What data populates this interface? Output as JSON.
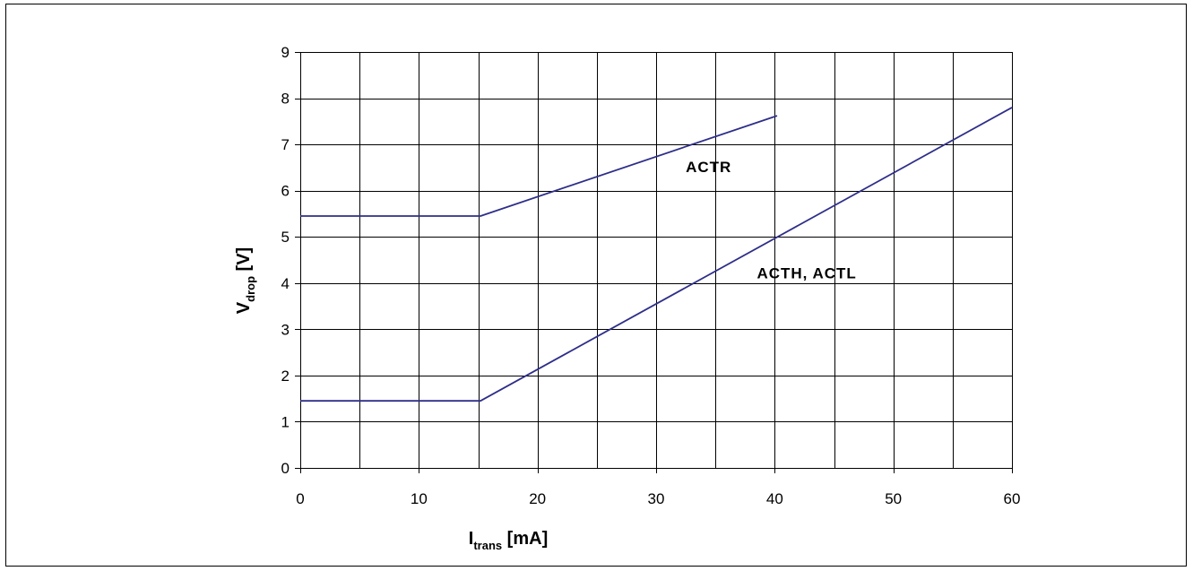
{
  "chart_data": {
    "type": "line",
    "xlabel": {
      "main": "I",
      "sub": "trans",
      "unit": " [mA]"
    },
    "ylabel": {
      "main": "V",
      "sub": "drop",
      "unit": " [V]"
    },
    "xlim": [
      0,
      60
    ],
    "ylim": [
      0,
      9
    ],
    "xticks": [
      0,
      10,
      20,
      30,
      40,
      50,
      60
    ],
    "yticks": [
      0,
      1,
      2,
      3,
      4,
      5,
      6,
      7,
      8,
      9
    ],
    "x_grid_step": 5,
    "y_grid_step": 1,
    "grid": true,
    "series": [
      {
        "name": "ACTR",
        "x": [
          0,
          15.2,
          40.2
        ],
        "y": [
          5.45,
          5.45,
          7.62
        ]
      },
      {
        "name": "ACTH, ACTL",
        "x": [
          0,
          15.2,
          60
        ],
        "y": [
          1.45,
          1.45,
          7.8
        ]
      }
    ],
    "annotations": [
      {
        "text": "ACTR",
        "x": 32.5,
        "y": 6.4
      },
      {
        "text": "ACTH, ACTL",
        "x": 38.5,
        "y": 4.1
      }
    ],
    "line_color": "#2e2e8a",
    "grid_color": "#000000"
  }
}
